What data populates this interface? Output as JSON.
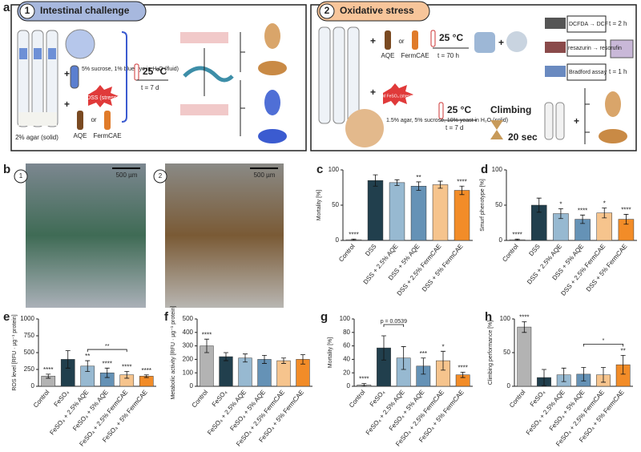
{
  "panels": {
    "a": "a",
    "b": "b",
    "c": "c",
    "d": "d",
    "e": "e",
    "f": "f",
    "g": "g",
    "h": "h"
  },
  "schematic": {
    "one": {
      "number": "1",
      "title": "Intestinal challenge",
      "fluid": "5% sucrose, 1% blue dye in H₂O (fluid)",
      "stressor": "5% DSS (stressor)",
      "agar": "2% agar (solid)",
      "plus1": "+",
      "plus2": "+",
      "aqe": "AQE",
      "or": "or",
      "ferm": "FermCAE",
      "temp": "25 °C",
      "time": "t = 7 d"
    },
    "two": {
      "number": "2",
      "title": "Oxidative stress",
      "plus1": "+",
      "aqe": "AQE",
      "or": "or",
      "ferm": "FermCAE",
      "temp1": "25 °C",
      "time1": "t = 70 h",
      "plus2": "+",
      "dcfda": "DCFDA → DCF",
      "resazurin": "resazurin → resorufin",
      "bradford": "Bradford assay",
      "t2h": "t = 2 h",
      "t1h": "t = 1 h",
      "plus3": "+",
      "stressor": "30 mM FeSO₄ (stressor)",
      "food": "1.5% agar, 5% sucrose, 10% yeast in H₂O (solid)",
      "temp2": "25 °C",
      "time2": "t = 7 d",
      "climbing": "Climbing",
      "sec": "20 sec",
      "plus4": "+"
    }
  },
  "photos": {
    "one": "1",
    "two": "2",
    "scale1": "500 µm",
    "scale2": "500 µm"
  },
  "chart_data": [
    {
      "type": "bar",
      "ylabel": "Mortality [%]",
      "categories": [
        "Control",
        "DSS",
        "DSS + 2.5% AQE",
        "DSS + 5% AQE",
        "DSS + 2.5% FermCAE",
        "DSS + 5% FermCAE"
      ],
      "values": [
        1,
        85,
        82,
        77,
        79,
        71
      ],
      "errors": [
        1,
        8,
        4,
        6,
        5,
        6
      ],
      "annotations": [
        "****",
        null,
        null,
        "**",
        null,
        "****"
      ],
      "colors": [
        "#b3b3b3",
        "#213f4d",
        "#97b9d1",
        "#6592b6",
        "#f6c48d",
        "#f28c28"
      ],
      "ylim": [
        0,
        100
      ],
      "yticks": [
        0,
        50,
        100
      ],
      "brackets": []
    },
    {
      "type": "bar",
      "ylabel": "Smurf phenotype [%]",
      "categories": [
        "Control",
        "DSS",
        "DSS + 2.5% AQE",
        "DSS + 5% AQE",
        "DSS + 2.5% FermCAE",
        "DSS + 5% FermCAE"
      ],
      "values": [
        1,
        50,
        38,
        30,
        39,
        30
      ],
      "errors": [
        1,
        10,
        7,
        6,
        7,
        7
      ],
      "annotations": [
        "****",
        null,
        "*",
        "****",
        "*",
        "****"
      ],
      "colors": [
        "#b3b3b3",
        "#213f4d",
        "#97b9d1",
        "#6592b6",
        "#f6c48d",
        "#f28c28"
      ],
      "ylim": [
        0,
        100
      ],
      "yticks": [
        0,
        50,
        100
      ],
      "brackets": []
    },
    {
      "type": "bar",
      "ylabel": "ROS level [RFU · µg⁻¹ protein]",
      "categories": [
        "Control",
        "FeSO₄",
        "FeSO₄ + 2.5% AQE",
        "FeSO₄ + 5% AQE",
        "FeSO₄ + 2.5% FermCAE",
        "FeSO₄ + 5% FermCAE"
      ],
      "values": [
        150,
        400,
        300,
        200,
        170,
        150
      ],
      "errors": [
        30,
        130,
        80,
        70,
        50,
        20
      ],
      "annotations": [
        "****",
        null,
        "**",
        "****",
        "****",
        "****"
      ],
      "colors": [
        "#b3b3b3",
        "#213f4d",
        "#97b9d1",
        "#6592b6",
        "#f6c48d",
        "#f28c28"
      ],
      "ylim": [
        0,
        1000
      ],
      "yticks": [
        0,
        250,
        500,
        750,
        1000
      ],
      "brackets": [
        {
          "from": 2,
          "to": 4,
          "label": "**"
        }
      ]
    },
    {
      "type": "bar",
      "ylabel": "Metabolic activity [RFU · µg⁻¹ protein]",
      "categories": [
        "Control",
        "FeSO₄",
        "FeSO₄ + 2.5% AQE",
        "FeSO₄ + 5% AQE",
        "FeSO₄ + 2.5% FermCAE",
        "FeSO₄ + 5% FermCAE"
      ],
      "values": [
        300,
        220,
        210,
        200,
        190,
        200
      ],
      "errors": [
        50,
        30,
        30,
        30,
        20,
        35
      ],
      "annotations": [
        "****",
        null,
        null,
        null,
        null,
        null
      ],
      "colors": [
        "#b3b3b3",
        "#213f4d",
        "#97b9d1",
        "#6592b6",
        "#f6c48d",
        "#f28c28"
      ],
      "ylim": [
        0,
        500
      ],
      "yticks": [
        0,
        100,
        200,
        300,
        400,
        500
      ],
      "brackets": []
    },
    {
      "type": "bar",
      "ylabel": "Mortality [%]",
      "categories": [
        "Control",
        "FeSO₄",
        "FeSO₄ + 2.5% AQE",
        "FeSO₄ + 5% AQE",
        "FeSO₄ + 2.5% FermCAE",
        "FeSO₄ + 5% FermCAE"
      ],
      "values": [
        2,
        57,
        42,
        30,
        38,
        17
      ],
      "errors": [
        2,
        18,
        17,
        12,
        14,
        4
      ],
      "annotations": [
        "****",
        null,
        null,
        "***",
        "*",
        "****"
      ],
      "colors": [
        "#b3b3b3",
        "#213f4d",
        "#97b9d1",
        "#6592b6",
        "#f6c48d",
        "#f28c28"
      ],
      "ylim": [
        0,
        100
      ],
      "yticks": [
        0,
        20,
        40,
        60,
        80,
        100
      ],
      "brackets": [
        {
          "from": 1,
          "to": 2,
          "label": "p = 0.0539"
        }
      ]
    },
    {
      "type": "bar",
      "ylabel": "Climbing performance [%]",
      "categories": [
        "Control",
        "FeSO₄",
        "FeSO₄ + 2.5% AQE",
        "FeSO₄ + 5% AQE",
        "FeSO₄ + 2.5% FermCAE",
        "FeSO₄ + 5% FermCAE"
      ],
      "values": [
        88,
        13,
        17,
        18,
        17,
        32
      ],
      "errors": [
        8,
        12,
        10,
        10,
        11,
        14
      ],
      "annotations": [
        "****",
        null,
        null,
        null,
        null,
        "**"
      ],
      "colors": [
        "#b3b3b3",
        "#213f4d",
        "#97b9d1",
        "#6592b6",
        "#f6c48d",
        "#f28c28"
      ],
      "ylim": [
        0,
        100
      ],
      "yticks": [
        0,
        50,
        100
      ],
      "brackets": [
        {
          "from": 3,
          "to": 5,
          "label": "*"
        }
      ]
    }
  ]
}
